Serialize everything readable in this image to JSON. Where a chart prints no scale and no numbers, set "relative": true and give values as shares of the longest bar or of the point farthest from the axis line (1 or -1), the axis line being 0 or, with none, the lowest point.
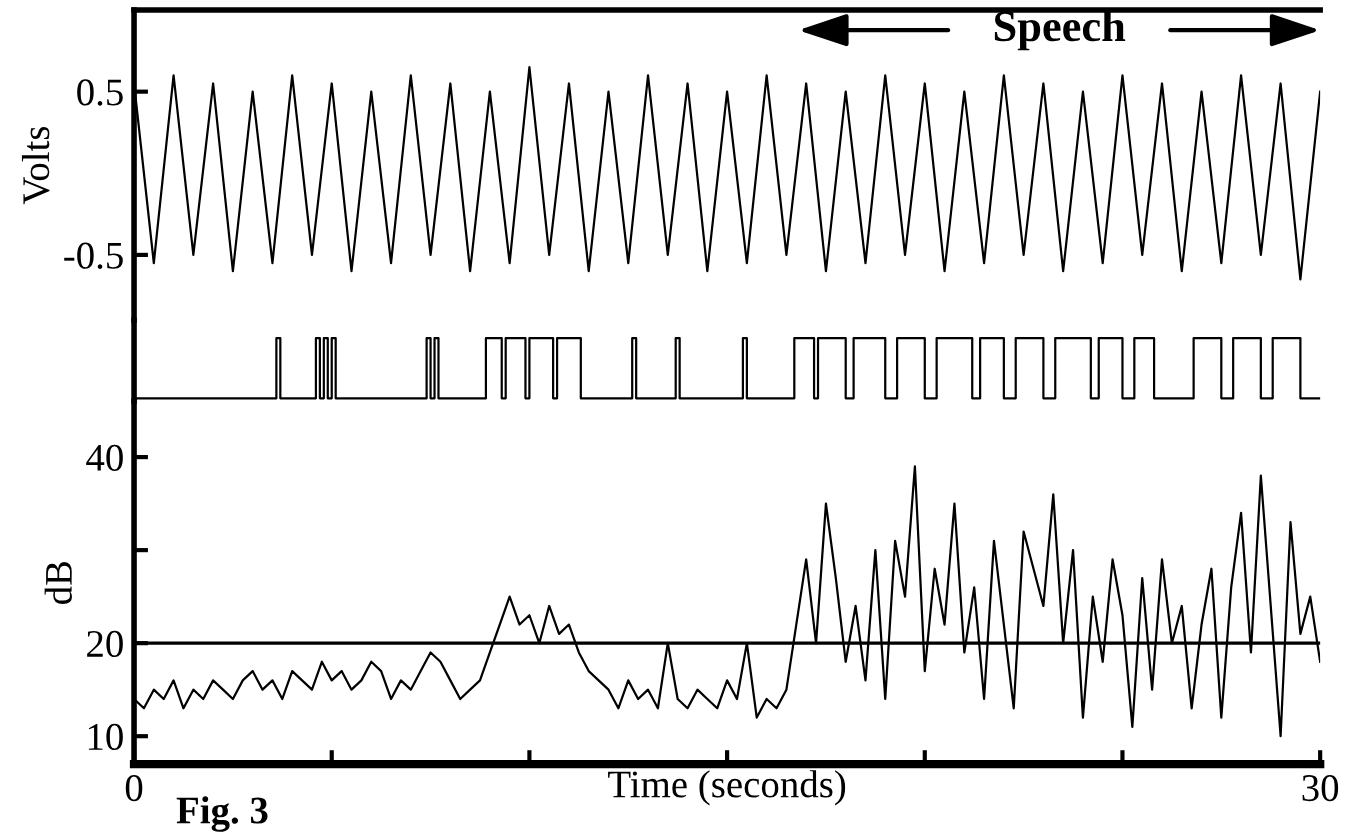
{
  "chart_data": [
    {
      "type": "line",
      "ylabel": "Volts",
      "xlim": [
        0,
        30
      ],
      "ylim": [
        -0.9,
        1.0
      ],
      "yticks": [
        0.5,
        -0.5
      ],
      "tick_labels": "y",
      "annotations": [
        "Speech"
      ],
      "x": [
        0,
        0.5,
        1,
        1.5,
        2,
        2.5,
        3,
        3.5,
        4,
        4.5,
        5,
        5.5,
        6,
        6.5,
        7,
        7.5,
        8,
        8.5,
        9,
        9.5,
        10,
        10.5,
        11,
        11.5,
        12,
        12.5,
        13,
        13.5,
        14,
        14.5,
        15,
        15.5,
        16,
        16.5,
        17,
        17.5,
        18,
        18.5,
        19,
        19.5,
        20,
        20.5,
        21,
        21.5,
        22,
        22.5,
        23,
        23.5,
        24,
        24.5,
        25,
        25.5,
        26,
        26.5,
        27,
        27.5,
        28,
        28.5,
        29,
        29.5,
        30
      ],
      "series": [
        {
          "color": "#000000",
          "values": [
            0.55,
            -0.55,
            0.6,
            -0.5,
            0.55,
            -0.6,
            0.5,
            -0.55,
            0.6,
            -0.5,
            0.55,
            -0.6,
            0.5,
            -0.55,
            0.6,
            -0.5,
            0.55,
            -0.6,
            0.5,
            -0.55,
            0.65,
            -0.5,
            0.55,
            -0.6,
            0.5,
            -0.55,
            0.6,
            -0.5,
            0.55,
            -0.6,
            0.5,
            -0.55,
            0.6,
            -0.5,
            0.55,
            -0.6,
            0.5,
            -0.55,
            0.6,
            -0.5,
            0.55,
            -0.6,
            0.5,
            -0.55,
            0.6,
            -0.5,
            0.55,
            -0.6,
            0.5,
            -0.55,
            0.6,
            -0.5,
            0.55,
            -0.6,
            0.5,
            -0.55,
            0.6,
            -0.5,
            0.55,
            -0.65,
            0.5
          ]
        }
      ]
    },
    {
      "type": "line",
      "relative": true,
      "xlim": [
        0,
        30
      ],
      "tick_labels": false,
      "x": [
        0,
        3.6,
        3.6,
        3.7,
        3.7,
        4.6,
        4.6,
        4.7,
        4.7,
        4.8,
        4.8,
        4.9,
        4.9,
        5.0,
        5.0,
        5.1,
        5.1,
        7.4,
        7.4,
        7.5,
        7.5,
        7.6,
        7.6,
        7.7,
        7.7,
        8.9,
        8.9,
        9.3,
        9.3,
        9.4,
        9.4,
        9.9,
        9.9,
        10.0,
        10.0,
        10.6,
        10.6,
        10.7,
        10.7,
        11.3,
        11.3,
        12.6,
        12.6,
        12.7,
        12.7,
        13.7,
        13.7,
        13.8,
        13.8,
        15.4,
        15.4,
        15.5,
        15.5,
        16.7,
        16.7,
        17.2,
        17.2,
        17.3,
        17.3,
        18.0,
        18.0,
        18.2,
        18.2,
        19.0,
        19.0,
        19.3,
        19.3,
        20.0,
        20.0,
        20.3,
        20.3,
        21.2,
        21.2,
        21.4,
        21.4,
        22.0,
        22.0,
        22.3,
        22.3,
        23.0,
        23.0,
        23.3,
        23.3,
        24.2,
        24.2,
        24.4,
        24.4,
        25.0,
        25.0,
        25.3,
        25.3,
        25.8,
        25.8,
        26.8,
        26.8,
        27.5,
        27.5,
        27.8,
        27.8,
        28.5,
        28.5,
        28.8,
        28.8,
        29.5,
        29.5,
        30
      ],
      "series": [
        {
          "color": "#000000",
          "values": [
            0,
            0,
            1,
            1,
            0,
            0,
            1,
            1,
            0,
            0,
            1,
            1,
            0,
            0,
            1,
            1,
            0,
            0,
            1,
            1,
            0,
            0,
            1,
            1,
            0,
            0,
            1,
            1,
            0,
            0,
            1,
            1,
            0,
            0,
            1,
            1,
            0,
            0,
            1,
            1,
            0,
            0,
            1,
            1,
            0,
            0,
            1,
            1,
            0,
            0,
            1,
            1,
            0,
            0,
            1,
            1,
            0,
            0,
            1,
            1,
            0,
            0,
            1,
            1,
            0,
            0,
            1,
            1,
            0,
            0,
            1,
            1,
            0,
            0,
            1,
            1,
            0,
            0,
            1,
            1,
            0,
            0,
            1,
            1,
            0,
            0,
            1,
            1,
            0,
            0,
            1,
            1,
            0,
            0,
            1,
            1,
            0,
            0,
            1,
            1,
            0,
            0,
            1,
            1,
            0,
            0
          ]
        }
      ]
    },
    {
      "type": "line",
      "xlabel": "Time (seconds)",
      "ylabel": "dB",
      "xlim": [
        0,
        30
      ],
      "ylim": [
        7,
        46
      ],
      "yticks": [
        10,
        20,
        {
          "value": 30,
          "label": null
        },
        40
      ],
      "xticks": [
        0,
        {
          "value": 5,
          "label": null
        },
        {
          "value": 10,
          "label": null
        },
        {
          "value": 15,
          "label": null
        },
        {
          "value": 20,
          "label": null
        },
        {
          "value": 25,
          "label": null
        },
        30
      ],
      "annotations": [
        "Fig. 3"
      ],
      "ref_lines": [
        {
          "axis": "y",
          "value": 20,
          "color": "#000000"
        }
      ],
      "x": [
        0,
        0.25,
        0.5,
        0.75,
        1,
        1.25,
        1.5,
        1.75,
        2,
        2.25,
        2.5,
        2.75,
        3,
        3.25,
        3.5,
        3.75,
        4,
        4.25,
        4.5,
        4.75,
        5,
        5.25,
        5.5,
        5.75,
        6,
        6.25,
        6.5,
        6.75,
        7,
        7.25,
        7.5,
        7.75,
        8,
        8.25,
        8.5,
        8.75,
        9,
        9.25,
        9.5,
        9.75,
        10,
        10.25,
        10.5,
        10.75,
        11,
        11.25,
        11.5,
        11.75,
        12,
        12.25,
        12.5,
        12.75,
        13,
        13.25,
        13.5,
        13.75,
        14,
        14.25,
        14.5,
        14.75,
        15,
        15.25,
        15.5,
        15.75,
        16,
        16.25,
        16.5,
        16.75,
        17,
        17.25,
        17.5,
        17.75,
        18,
        18.25,
        18.5,
        18.75,
        19,
        19.25,
        19.5,
        19.75,
        20,
        20.25,
        20.5,
        20.75,
        21,
        21.25,
        21.5,
        21.75,
        22,
        22.25,
        22.5,
        22.75,
        23,
        23.25,
        23.5,
        23.75,
        24,
        24.25,
        24.5,
        24.75,
        25,
        25.25,
        25.5,
        25.75,
        26,
        26.25,
        26.5,
        26.75,
        27,
        27.25,
        27.5,
        27.75,
        28,
        28.25,
        28.5,
        28.75,
        29,
        29.25,
        29.5,
        29.75,
        30
      ],
      "series": [
        {
          "color": "#000000",
          "values": [
            14,
            13,
            15,
            14,
            16,
            13,
            15,
            14,
            16,
            15,
            14,
            16,
            17,
            15,
            16,
            14,
            17,
            16,
            15,
            18,
            16,
            17,
            15,
            16,
            18,
            17,
            14,
            16,
            15,
            17,
            19,
            18,
            16,
            14,
            15,
            16,
            19,
            22,
            25,
            22,
            23,
            20,
            24,
            21,
            22,
            19,
            17,
            16,
            15,
            13,
            16,
            14,
            15,
            13,
            20,
            14,
            13,
            15,
            14,
            13,
            16,
            14,
            20,
            12,
            14,
            13,
            15,
            22,
            29,
            20,
            35,
            27,
            18,
            24,
            16,
            30,
            14,
            31,
            25,
            39,
            17,
            28,
            22,
            35,
            19,
            26,
            14,
            31,
            22,
            13,
            32,
            28,
            24,
            36,
            20,
            30,
            12,
            25,
            18,
            29,
            23,
            11,
            27,
            15,
            29,
            20,
            24,
            13,
            22,
            28,
            12,
            26,
            34,
            19,
            38,
            24,
            10,
            33,
            21,
            25,
            18
          ]
        }
      ]
    }
  ]
}
